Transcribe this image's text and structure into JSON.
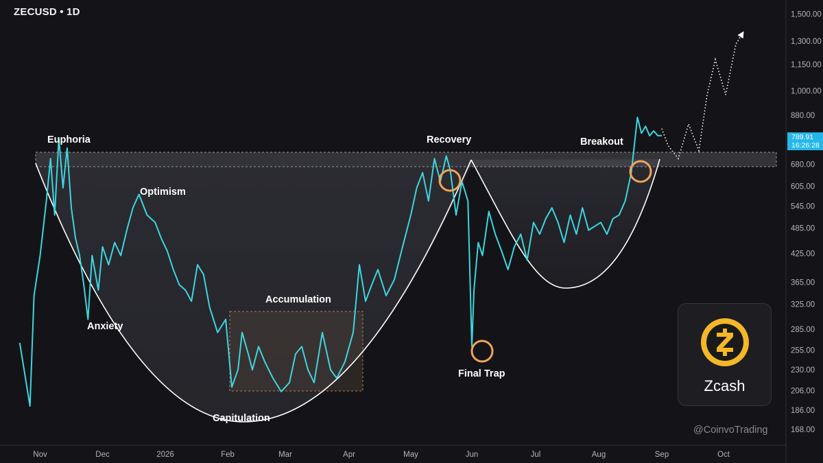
{
  "chart_data": {
    "type": "line",
    "symbol": "ZECUSD",
    "interval": "1D",
    "title": "ZECUSD • 1D",
    "y_scale": "log",
    "y_ticks": [
      "1,500.00",
      "1,300.00",
      "1,150.00",
      "1,000.00",
      "880.00",
      "680.00",
      "605.00",
      "545.00",
      "485.00",
      "425.00",
      "365.00",
      "325.00",
      "285.00",
      "255.00",
      "230.00",
      "206.00",
      "186.00",
      "168.00"
    ],
    "x_ticks": [
      "Nov",
      "Dec",
      "2026",
      "Feb",
      "Mar",
      "Apr",
      "May",
      "Jun",
      "Jul",
      "Aug",
      "Sep",
      "Oct"
    ],
    "last_price": "789.91",
    "countdown": "16:26:28",
    "annotations": [
      "Euphoria",
      "Anxiety",
      "Optimism",
      "Capitulation",
      "Accumulation",
      "Recovery",
      "Final Trap",
      "Breakout"
    ],
    "resistance_zone": [
      680,
      730
    ],
    "accumulation_zone": {
      "start": "Feb",
      "end": "Apr",
      "low": 206,
      "high": 320
    },
    "series": [
      {
        "color": "#3fd6df",
        "x": [
          "Oct 22",
          "Oct 27",
          "Oct 29",
          "Nov 1",
          "Nov 4",
          "Nov 6",
          "Nov 8",
          "Nov 10",
          "Nov 12",
          "Nov 14",
          "Nov 16",
          "Nov 18",
          "Nov 20",
          "Nov 22",
          "Nov 24",
          "Nov 26",
          "Nov 29",
          "Dec 1",
          "Dec 4",
          "Dec 7",
          "Dec 10",
          "Dec 13",
          "Dec 16",
          "Dec 19",
          "Dec 23",
          "Dec 27",
          "Dec 30",
          "Jan 2",
          "Jan 5",
          "Jan 8",
          "Jan 11",
          "Jan 14",
          "Jan 17",
          "Jan 20",
          "Jan 23",
          "Jan 27",
          "Jan 31",
          "Feb 3",
          "Feb 6",
          "Feb 8",
          "Feb 11",
          "Feb 13",
          "Feb 16",
          "Feb 19",
          "Feb 23",
          "Feb 27",
          "Mar 3",
          "Mar 6",
          "Mar 9",
          "Mar 12",
          "Mar 15",
          "Mar 19",
          "Mar 23",
          "Mar 26",
          "Mar 30",
          "Apr 3",
          "Apr 6",
          "Apr 9",
          "Apr 12",
          "Apr 15",
          "Apr 19",
          "Apr 23",
          "Apr 27",
          "May 1",
          "May 4",
          "May 7",
          "May 10",
          "May 13",
          "May 16",
          "May 19",
          "May 21",
          "May 24",
          "May 27",
          "May 30",
          "Jun 1",
          "Jun 2",
          "Jun 4",
          "Jun 6",
          "Jun 9",
          "Jun 12",
          "Jun 15",
          "Jun 18",
          "Jun 21",
          "Jun 24",
          "Jun 27",
          "Jun 30",
          "Jul 3",
          "Jul 6",
          "Jul 9",
          "Jul 12",
          "Jul 15",
          "Jul 18",
          "Jul 21",
          "Jul 24",
          "Jul 27",
          "Jul 30",
          "Aug 2",
          "Aug 5",
          "Aug 8",
          "Aug 11",
          "Aug 14",
          "Aug 17",
          "Aug 20",
          "Aug 22",
          "Aug 24",
          "Aug 26",
          "Aug 28",
          "Aug 30",
          "Sep 1"
        ],
        "values": [
          265,
          190,
          340,
          420,
          560,
          700,
          520,
          780,
          600,
          740,
          540,
          460,
          420,
          360,
          300,
          420,
          350,
          440,
          400,
          450,
          420,
          480,
          540,
          580,
          520,
          500,
          460,
          430,
          390,
          360,
          350,
          330,
          400,
          380,
          320,
          280,
          300,
          210,
          230,
          280,
          250,
          230,
          260,
          240,
          220,
          205,
          215,
          250,
          260,
          230,
          215,
          280,
          230,
          220,
          240,
          280,
          400,
          330,
          360,
          390,
          340,
          370,
          440,
          520,
          600,
          650,
          560,
          700,
          620,
          710,
          660,
          520,
          620,
          560,
          260,
          350,
          450,
          420,
          530,
          470,
          430,
          390,
          440,
          470,
          410,
          500,
          470,
          510,
          540,
          500,
          450,
          520,
          470,
          540,
          480,
          490,
          500,
          470,
          510,
          520,
          560,
          650,
          870,
          800,
          830,
          790,
          810,
          790,
          790
        ]
      }
    ],
    "projection": {
      "style": "dotted",
      "x": [
        "Sep 1",
        "Sep 4",
        "Sep 9",
        "Sep 14",
        "Sep 19",
        "Sep 23",
        "Sep 27",
        "Oct 2",
        "Oct 7",
        "Oct 10"
      ],
      "values": [
        820,
        750,
        700,
        840,
        730,
        980,
        1180,
        980,
        1280,
        1350
      ]
    }
  },
  "brand": {
    "name": "Zcash",
    "accent": "#f4b728"
  },
  "watermark": "@CoinvoTrading"
}
